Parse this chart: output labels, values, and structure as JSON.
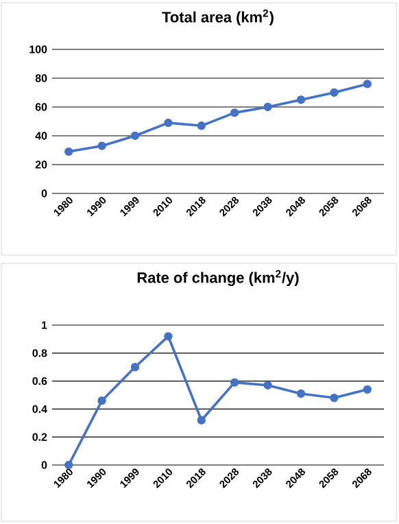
{
  "chart_data": [
    {
      "type": "line",
      "title": "Total area (km$^{2}$)",
      "categories": [
        "1980",
        "1990",
        "1999",
        "2010",
        "2018",
        "2028",
        "2038",
        "2048",
        "2058",
        "2068"
      ],
      "values": [
        29,
        33,
        40,
        49,
        47,
        56,
        60,
        65,
        70,
        76
      ],
      "color": "#4472c4",
      "ylim": [
        0,
        100
      ],
      "yticks": [
        0,
        20,
        40,
        60,
        80,
        100
      ],
      "grid": "y",
      "marker": "circle",
      "line_style": "solid"
    },
    {
      "type": "line",
      "title": "Rate of change (km$^{2}$/y)",
      "categories": [
        "1980",
        "1990",
        "1999",
        "2010",
        "2018",
        "2028",
        "2038",
        "2048",
        "2058",
        "2068"
      ],
      "values": [
        0,
        0.46,
        0.7,
        0.92,
        0.32,
        0.59,
        0.57,
        0.51,
        0.48,
        0.54
      ],
      "color": "#4472c4",
      "ylim": [
        0,
        1
      ],
      "yticks": [
        0,
        0.2,
        0.4,
        0.6,
        0.8,
        1
      ],
      "grid": "y",
      "marker": "circle",
      "line_style": "solid"
    }
  ]
}
